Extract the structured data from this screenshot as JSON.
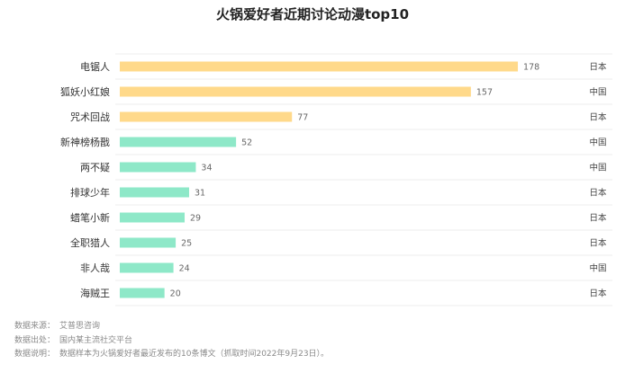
{
  "chart_data": {
    "type": "bar",
    "orientation": "horizontal",
    "title": "火锅爱好者近期讨论动漫top10",
    "categories": [
      "电锯人",
      "狐妖小红娘",
      "咒术回战",
      "新神榜杨戬",
      "两不疑",
      "排球少年",
      "蜡笔小新",
      "全职猎人",
      "非人哉",
      "海贼王"
    ],
    "values": [
      178,
      157,
      77,
      52,
      34,
      31,
      29,
      25,
      24,
      20
    ],
    "origin": [
      "日本",
      "中国",
      "日本",
      "中国",
      "中国",
      "日本",
      "日本",
      "日本",
      "中国",
      "日本"
    ],
    "highlight_top": 3,
    "xlim": [
      0,
      180
    ],
    "grid": "horizontal row separators",
    "colors": {
      "highlight": "#ffd98a",
      "normal": "#8ee8c8"
    }
  },
  "notes": [
    {
      "label": "数据来源：",
      "value": "艾普思咨询"
    },
    {
      "label": "数据出处：",
      "value": "国内某主流社交平台"
    },
    {
      "label": "数据说明：",
      "value": "数据样本为火锅爱好者最近发布的10条博文（抓取时间2022年9月23日）。"
    }
  ]
}
